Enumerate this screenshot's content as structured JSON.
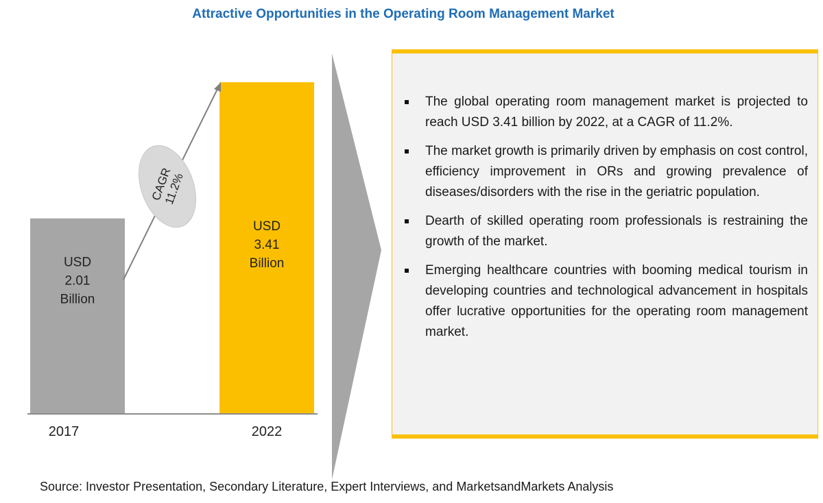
{
  "title": "Attractive Opportunities in the Operating Room Management Market",
  "chart_data": {
    "type": "bar",
    "categories": [
      "2017",
      "2022"
    ],
    "values": [
      2.01,
      3.41
    ],
    "value_labels": [
      [
        "USD",
        "2.01",
        "Billion"
      ],
      [
        "USD",
        "3.41",
        "Billion"
      ]
    ],
    "colors": [
      "#a6a6a6",
      "#fbbf00"
    ],
    "annotation": {
      "line1": "CAGR",
      "line2": "11.2%"
    },
    "ylim": [
      0,
      3.41
    ]
  },
  "bullets": [
    "The global operating room management market is projected to reach USD 3.41 billion by 2022, at a CAGR of 11.2%.",
    "The market growth is primarily driven by emphasis on cost control, efficiency improvement in ORs and growing prevalence of diseases/disorders with the rise in the geriatric population.",
    "Dearth of skilled operating room professionals is restraining the growth of the market.",
    "Emerging healthcare countries with booming medical tourism in developing countries and technological advancement in hospitals offer lucrative opportunities for the operating room management market."
  ],
  "accent_color": "#f9c00c",
  "source": "Source: Investor Presentation, Secondary Literature, Expert Interviews, and MarketsandMarkets Analysis"
}
